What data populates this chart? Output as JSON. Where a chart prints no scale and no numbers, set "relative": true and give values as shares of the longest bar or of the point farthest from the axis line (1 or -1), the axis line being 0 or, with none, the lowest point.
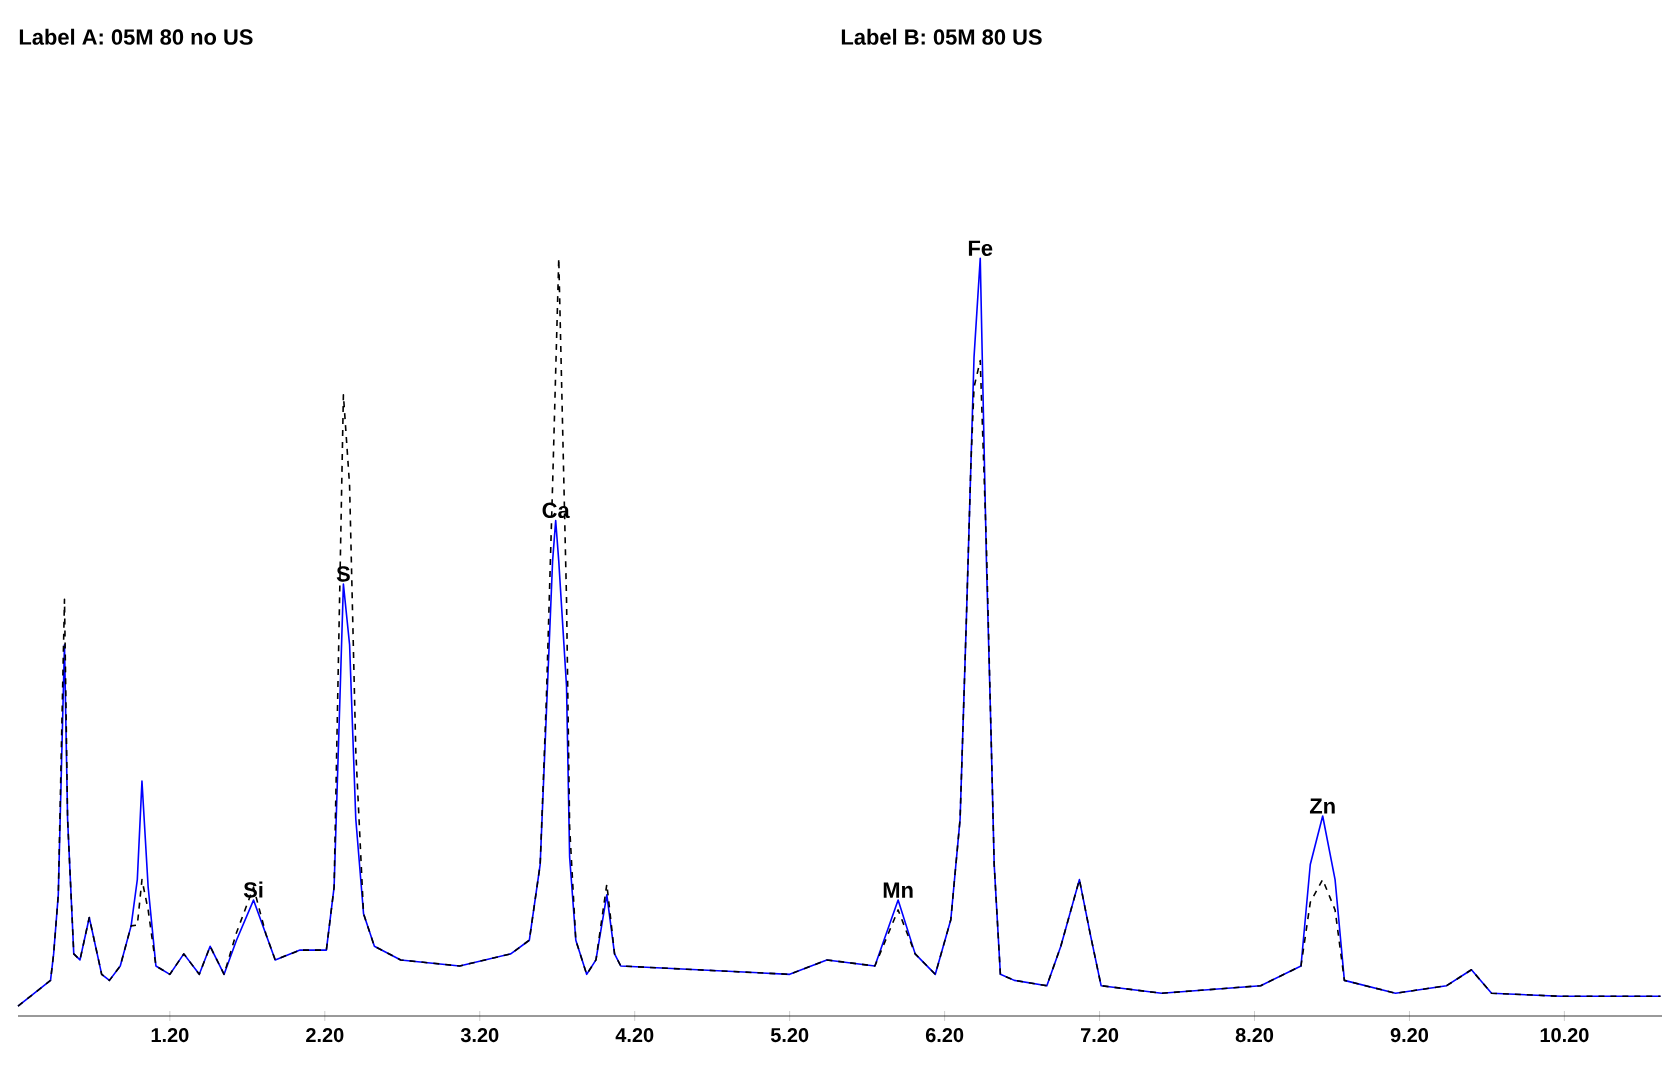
{
  "chart_data": {
    "type": "line",
    "relative": true,
    "x": [
      0.22,
      0.43,
      0.45,
      0.48,
      0.52,
      0.54,
      0.58,
      0.62,
      0.68,
      0.76,
      0.81,
      0.88,
      0.95,
      0.99,
      1.02,
      1.06,
      1.11,
      1.2,
      1.29,
      1.39,
      1.46,
      1.55,
      1.63,
      1.74,
      1.82,
      1.88,
      2.04,
      2.21,
      2.26,
      2.3,
      2.32,
      2.36,
      2.4,
      2.45,
      2.52,
      2.69,
      3.07,
      3.4,
      3.52,
      3.59,
      3.63,
      3.67,
      3.69,
      3.71,
      3.76,
      3.78,
      3.82,
      3.89,
      3.95,
      4.02,
      4.07,
      4.11,
      5.2,
      5.44,
      5.75,
      5.9,
      6.01,
      6.14,
      6.24,
      6.3,
      6.34,
      6.37,
      6.39,
      6.43,
      6.47,
      6.5,
      6.52,
      6.56,
      6.65,
      6.86,
      6.95,
      7.07,
      7.14,
      7.21,
      7.6,
      8.24,
      8.5,
      8.56,
      8.64,
      8.72,
      8.78,
      9.11,
      9.44,
      9.6,
      9.73,
      10.18,
      10.82
    ],
    "series": [
      {
        "color": "#0000ff",
        "line_style": "solid",
        "values": [
          0.013,
          0.047,
          0.082,
          0.16,
          0.49,
          0.26,
          0.082,
          0.074,
          0.13,
          0.055,
          0.047,
          0.066,
          0.119,
          0.18,
          0.31,
          0.17,
          0.066,
          0.055,
          0.082,
          0.055,
          0.092,
          0.055,
          0.1,
          0.153,
          0.108,
          0.074,
          0.087,
          0.087,
          0.17,
          0.435,
          0.57,
          0.49,
          0.26,
          0.135,
          0.092,
          0.074,
          0.066,
          0.082,
          0.1,
          0.2,
          0.4,
          0.6,
          0.654,
          0.6,
          0.435,
          0.21,
          0.1,
          0.055,
          0.074,
          0.16,
          0.082,
          0.066,
          0.055,
          0.074,
          0.066,
          0.153,
          0.082,
          0.055,
          0.127,
          0.26,
          0.52,
          0.73,
          0.87,
          1.0,
          0.6,
          0.37,
          0.2,
          0.055,
          0.047,
          0.04,
          0.092,
          0.18,
          0.108,
          0.04,
          0.03,
          0.04,
          0.066,
          0.2,
          0.264,
          0.18,
          0.047,
          0.03,
          0.04,
          0.061,
          0.03,
          0.026,
          0.026
        ]
      },
      {
        "color": "#000000",
        "line_style": "dashed",
        "values": [
          0.013,
          0.047,
          0.082,
          0.16,
          0.55,
          0.26,
          0.082,
          0.074,
          0.13,
          0.055,
          0.047,
          0.066,
          0.119,
          0.12,
          0.18,
          0.14,
          0.066,
          0.055,
          0.082,
          0.055,
          0.092,
          0.055,
          0.11,
          0.17,
          0.108,
          0.074,
          0.087,
          0.087,
          0.17,
          0.6,
          0.82,
          0.7,
          0.35,
          0.135,
          0.092,
          0.074,
          0.066,
          0.082,
          0.1,
          0.2,
          0.42,
          0.7,
          0.85,
          1.0,
          0.55,
          0.25,
          0.1,
          0.055,
          0.074,
          0.174,
          0.082,
          0.066,
          0.055,
          0.074,
          0.066,
          0.14,
          0.082,
          0.055,
          0.127,
          0.26,
          0.52,
          0.73,
          0.83,
          0.865,
          0.62,
          0.37,
          0.2,
          0.055,
          0.047,
          0.04,
          0.092,
          0.18,
          0.108,
          0.04,
          0.03,
          0.04,
          0.066,
          0.15,
          0.18,
          0.14,
          0.047,
          0.03,
          0.04,
          0.061,
          0.03,
          0.026,
          0.026
        ]
      }
    ],
    "xlim": [
      0.22,
      10.83
    ],
    "xticks": [
      {
        "value": 1.2,
        "label": "1.20"
      },
      {
        "value": 2.2,
        "label": "2.20"
      },
      {
        "value": 3.2,
        "label": "3.20"
      },
      {
        "value": 4.2,
        "label": "4.20"
      },
      {
        "value": 5.2,
        "label": "5.20"
      },
      {
        "value": 6.2,
        "label": "6.20"
      },
      {
        "value": 7.2,
        "label": "7.20"
      },
      {
        "value": 8.2,
        "label": "8.20"
      },
      {
        "value": 9.2,
        "label": "9.20"
      },
      {
        "value": 10.2,
        "label": "10.20"
      }
    ],
    "annotations": [
      "Label A: 05M 80 no US",
      "Label B: 05M 80 US",
      {
        "text": "Si",
        "x": 1.74,
        "y": 0.153
      },
      {
        "text": "S",
        "x": 2.32,
        "y": 0.57
      },
      {
        "text": "Ca",
        "x": 3.69,
        "y": 0.654
      },
      {
        "text": "Mn",
        "x": 5.9,
        "y": 0.153
      },
      {
        "text": "Fe",
        "x": 6.43,
        "y": 1.0
      },
      {
        "text": "Zn",
        "x": 8.64,
        "y": 0.264
      }
    ]
  }
}
